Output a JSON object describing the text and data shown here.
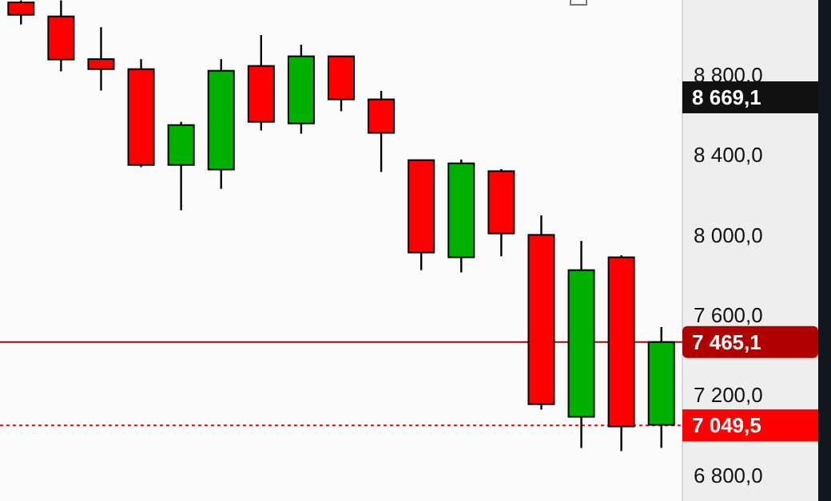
{
  "chart_data": {
    "type": "candlestick",
    "categories": [
      null,
      null,
      null,
      null,
      null,
      null,
      null,
      null,
      null,
      null,
      null,
      null,
      null,
      null,
      null,
      null,
      null
    ],
    "ohlc": [
      [
        9160,
        9170,
        9050,
        9098
      ],
      [
        9090,
        9170,
        8816,
        8875
      ],
      [
        8877,
        9036,
        8720,
        8827
      ],
      [
        8827,
        8877,
        8338,
        8349
      ],
      [
        8349,
        8564,
        8123,
        8548
      ],
      [
        8326,
        8877,
        8230,
        8819
      ],
      [
        8843,
        8997,
        8521,
        8564
      ],
      [
        8556,
        8949,
        8505,
        8891
      ],
      [
        8891,
        8891,
        8617,
        8676
      ],
      [
        8676,
        8718,
        8314,
        8509
      ],
      [
        8373,
        8373,
        7824,
        7912
      ],
      [
        7888,
        8376,
        7813,
        8357
      ],
      [
        8318,
        8328,
        7893,
        8007
      ],
      [
        8000,
        8097,
        7128,
        7155
      ],
      [
        7092,
        7970,
        6937,
        7824
      ],
      [
        7888,
        7898,
        6921,
        7044
      ],
      [
        7052,
        7540,
        6937,
        7465
      ]
    ],
    "colors": [
      "#ff0000",
      "#ff0000",
      "#ff0000",
      "#ff0000",
      "#00b000",
      "#00b000",
      "#ff0000",
      "#00b000",
      "#ff0000",
      "#ff0000",
      "#ff0000",
      "#00b000",
      "#ff0000",
      "#ff0000",
      "#00b000",
      "#ff0000",
      "#00b000"
    ],
    "ylim": [
      6672,
      9172
    ],
    "yticks": [
      {
        "value": 6800,
        "label": "6 800,0"
      },
      {
        "value": 7200,
        "label": "7 200,0"
      },
      {
        "value": 7600,
        "label": "7 600,0"
      },
      {
        "value": 8000,
        "label": "8 000,0"
      },
      {
        "value": 8400,
        "label": "8 400,0"
      },
      {
        "value": 8800,
        "label": "8 800,0"
      }
    ],
    "annotations": [
      "8 669,1"
    ],
    "ref_lines": [
      {
        "axis": "y",
        "value": 7465.1,
        "label": "7 465,1",
        "color": "#b00000",
        "line_style": "solid"
      },
      {
        "axis": "y",
        "value": 7049.5,
        "label": "7 049,5",
        "color": "#ff0000",
        "line_style": "dotted"
      }
    ],
    "grid": false,
    "tick_labels": "y"
  }
}
